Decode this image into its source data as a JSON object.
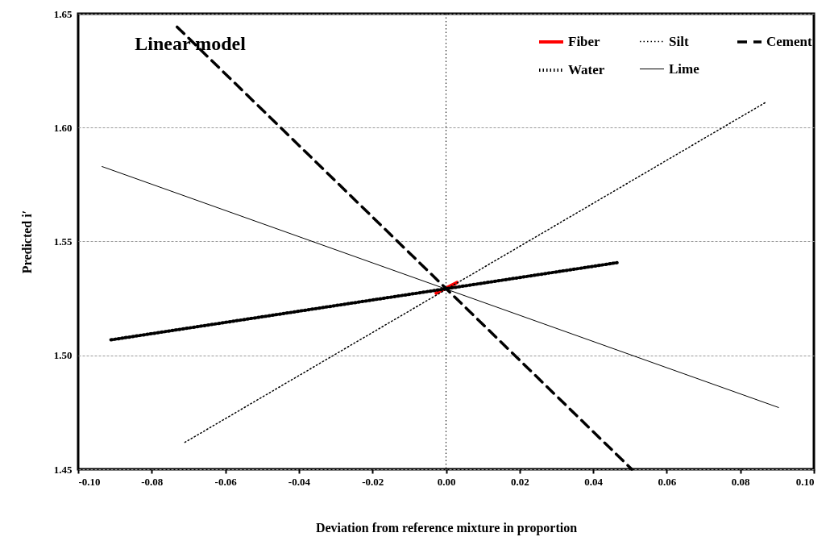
{
  "chart_data": {
    "type": "line",
    "title": "Linear model",
    "xlabel": "Deviation from reference mixture in proportion",
    "ylabel": "Predicted i′",
    "xlim": [
      -0.1,
      0.1
    ],
    "xticks": [
      {
        "value": -0.1,
        "label": "-0.10"
      },
      {
        "value": -0.08,
        "label": "-0.08"
      },
      {
        "value": -0.06,
        "label": "-0.06"
      },
      {
        "value": -0.04,
        "label": "-0.04"
      },
      {
        "value": -0.02,
        "label": "-0.02"
      },
      {
        "value": 0,
        "label": "0.00"
      },
      {
        "value": 0.02,
        "label": "0.02"
      },
      {
        "value": 0.04,
        "label": "0.04"
      },
      {
        "value": 0.06,
        "label": "0.06"
      },
      {
        "value": 0.08,
        "label": "0.08"
      },
      {
        "value": 0.1,
        "label": "0.10"
      }
    ],
    "ylim": [
      1.45,
      1.65
    ],
    "yticks": [
      {
        "value": 1.45,
        "label": "1.45"
      },
      {
        "value": 1.5,
        "label": "1.50"
      },
      {
        "value": 1.55,
        "label": "1.55"
      },
      {
        "value": 1.6,
        "label": "1.60"
      },
      {
        "value": 1.65,
        "label": "1.65"
      }
    ],
    "grid": "y",
    "legend": "top right",
    "marker": "none",
    "ref_lines": [
      {
        "axis": "x",
        "value": 0,
        "line_style": "dotted",
        "color": "#000000"
      }
    ],
    "series": [
      {
        "name": "Fiber",
        "color": "#ff0000",
        "line_style": "solid",
        "x": [
          -0.0027,
          0.003
        ],
        "values": [
          1.5273,
          1.532
        ]
      },
      {
        "name": "Silt",
        "color": "#000000",
        "line_style": "dotted",
        "x": [
          -0.071,
          0.0867
        ],
        "values": [
          1.4618,
          1.6109
        ]
      },
      {
        "name": "Cement",
        "color": "#000000",
        "line_style": "dashed",
        "x": [
          -0.0731,
          0.0505
        ],
        "values": [
          1.6442,
          1.45
        ]
      },
      {
        "name": "Water",
        "color": "#000000",
        "line_style": "dotted",
        "x": [
          -0.0911,
          0.0465
        ],
        "values": [
          1.5068,
          1.5407
        ]
      },
      {
        "name": "Lime",
        "color": "#000000",
        "line_style": "solid",
        "x": [
          -0.0935,
          0.0904
        ],
        "values": [
          1.5829,
          1.4771
        ]
      }
    ]
  }
}
